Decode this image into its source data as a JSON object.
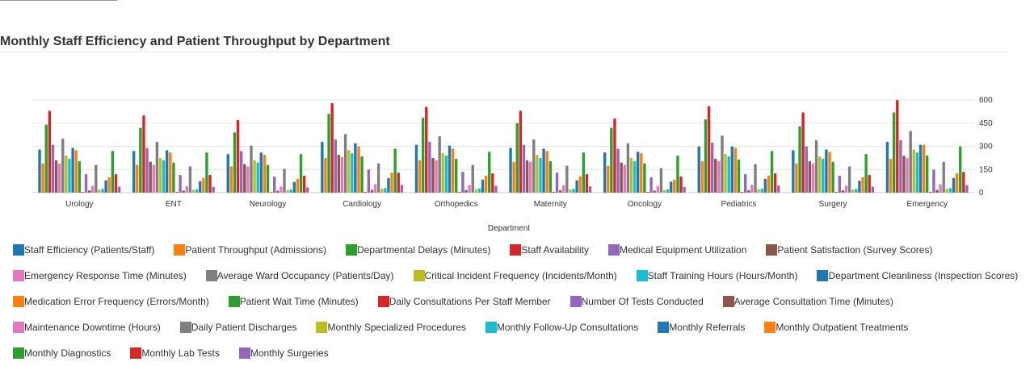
{
  "chart_data": {
    "type": "bar",
    "title": "Monthly Staff Efficiency and Patient Throughput by Department",
    "xlabel": "Department",
    "ylabel": "",
    "ylim": [
      0,
      600
    ],
    "yticks": [
      0,
      150,
      300,
      450,
      600
    ],
    "y_axis_side": "right",
    "grid": true,
    "legend_position": "bottom",
    "categories": [
      "Urology",
      "ENT",
      "Neurology",
      "Cardiology",
      "Orthopedics",
      "Maternity",
      "Oncology",
      "Pediatrics",
      "Surgery",
      "Emergency"
    ],
    "series": [
      {
        "name": "Staff Efficiency (Patients/Staff)",
        "color": "#1f77b4",
        "values": [
          280,
          270,
          250,
          330,
          310,
          290,
          260,
          300,
          275,
          330
        ]
      },
      {
        "name": "Patient Throughput (Admissions)",
        "color": "#ff7f0e",
        "values": [
          190,
          180,
          170,
          225,
          210,
          200,
          175,
          205,
          190,
          220
        ]
      },
      {
        "name": "Departmental Delays (Minutes)",
        "color": "#2ca02c",
        "values": [
          440,
          420,
          390,
          510,
          485,
          450,
          420,
          475,
          430,
          520
        ]
      },
      {
        "name": "Staff Availability",
        "color": "#d62728",
        "values": [
          530,
          500,
          470,
          580,
          555,
          530,
          480,
          560,
          520,
          600
        ]
      },
      {
        "name": "Medical Equipment Utilization",
        "color": "#9467bd",
        "values": [
          310,
          290,
          270,
          345,
          330,
          310,
          285,
          325,
          300,
          340
        ]
      },
      {
        "name": "Patient Satisfaction (Survey Scores)",
        "color": "#8c564b",
        "values": [
          210,
          200,
          185,
          245,
          225,
          210,
          195,
          220,
          205,
          240
        ]
      },
      {
        "name": "Emergency Response Time (Minutes)",
        "color": "#e377c2",
        "values": [
          190,
          180,
          170,
          230,
          210,
          200,
          180,
          205,
          190,
          225
        ]
      },
      {
        "name": "Average Ward Occupancy (Patients/Day)",
        "color": "#7f7f7f",
        "values": [
          350,
          330,
          305,
          380,
          365,
          345,
          320,
          370,
          340,
          400
        ]
      },
      {
        "name": "Critical Incident Frequency (Incidents/Month)",
        "color": "#bcbd22",
        "values": [
          240,
          225,
          210,
          275,
          255,
          245,
          225,
          250,
          235,
          280
        ]
      },
      {
        "name": "Staff Training Hours (Hours/Month)",
        "color": "#17becf",
        "values": [
          220,
          210,
          195,
          255,
          240,
          225,
          205,
          235,
          220,
          260
        ]
      },
      {
        "name": "Department Cleanliness (Inspection Scores)",
        "color": "#1f77b4",
        "values": [
          290,
          275,
          260,
          320,
          305,
          285,
          265,
          300,
          280,
          310
        ]
      },
      {
        "name": "Medication Error Frequency (Errors/Month)",
        "color": "#ff7f0e",
        "values": [
          275,
          260,
          245,
          300,
          285,
          270,
          255,
          290,
          265,
          310
        ]
      },
      {
        "name": "Patient Wait Time (Minutes)",
        "color": "#2ca02c",
        "values": [
          205,
          195,
          180,
          235,
          220,
          205,
          190,
          215,
          200,
          240
        ]
      },
      {
        "name": "Daily Consultations Per Staff Member",
        "color": "#d62728",
        "values": [
          5,
          5,
          4,
          6,
          6,
          5,
          5,
          6,
          5,
          6
        ]
      },
      {
        "name": "Number Of Tests Conducted",
        "color": "#9467bd",
        "values": [
          120,
          115,
          105,
          150,
          135,
          130,
          100,
          120,
          110,
          150
        ]
      },
      {
        "name": "Average Consultation Time (Minutes)",
        "color": "#8c564b",
        "values": [
          15,
          14,
          13,
          18,
          17,
          16,
          14,
          16,
          15,
          18
        ]
      },
      {
        "name": "Maintenance Downtime (Hours)",
        "color": "#e377c2",
        "values": [
          45,
          42,
          40,
          55,
          50,
          48,
          43,
          50,
          46,
          55
        ]
      },
      {
        "name": "Daily Patient Discharges",
        "color": "#7f7f7f",
        "values": [
          180,
          170,
          155,
          190,
          180,
          175,
          160,
          185,
          170,
          200
        ]
      },
      {
        "name": "Monthly Specialized Procedures",
        "color": "#bcbd22",
        "values": [
          20,
          19,
          17,
          25,
          22,
          21,
          18,
          23,
          20,
          25
        ]
      },
      {
        "name": "Monthly Follow-Up Consultations",
        "color": "#17becf",
        "values": [
          25,
          23,
          21,
          30,
          28,
          26,
          22,
          27,
          25,
          30
        ]
      },
      {
        "name": "Monthly Referrals",
        "color": "#1f77b4",
        "values": [
          80,
          75,
          70,
          95,
          85,
          80,
          72,
          90,
          78,
          95
        ]
      },
      {
        "name": "Monthly Outpatient Treatments",
        "color": "#ff7f0e",
        "values": [
          100,
          95,
          90,
          130,
          110,
          105,
          85,
          110,
          100,
          125
        ]
      },
      {
        "name": "Monthly Diagnostics",
        "color": "#2ca02c",
        "values": [
          270,
          260,
          250,
          285,
          265,
          260,
          240,
          270,
          250,
          300
        ]
      },
      {
        "name": "Monthly Lab Tests",
        "color": "#d62728",
        "values": [
          120,
          115,
          110,
          130,
          125,
          120,
          105,
          125,
          115,
          135
        ]
      },
      {
        "name": "Monthly Surgeries",
        "color": "#9467bd",
        "values": [
          40,
          38,
          35,
          50,
          45,
          42,
          38,
          46,
          40,
          50
        ]
      }
    ]
  }
}
